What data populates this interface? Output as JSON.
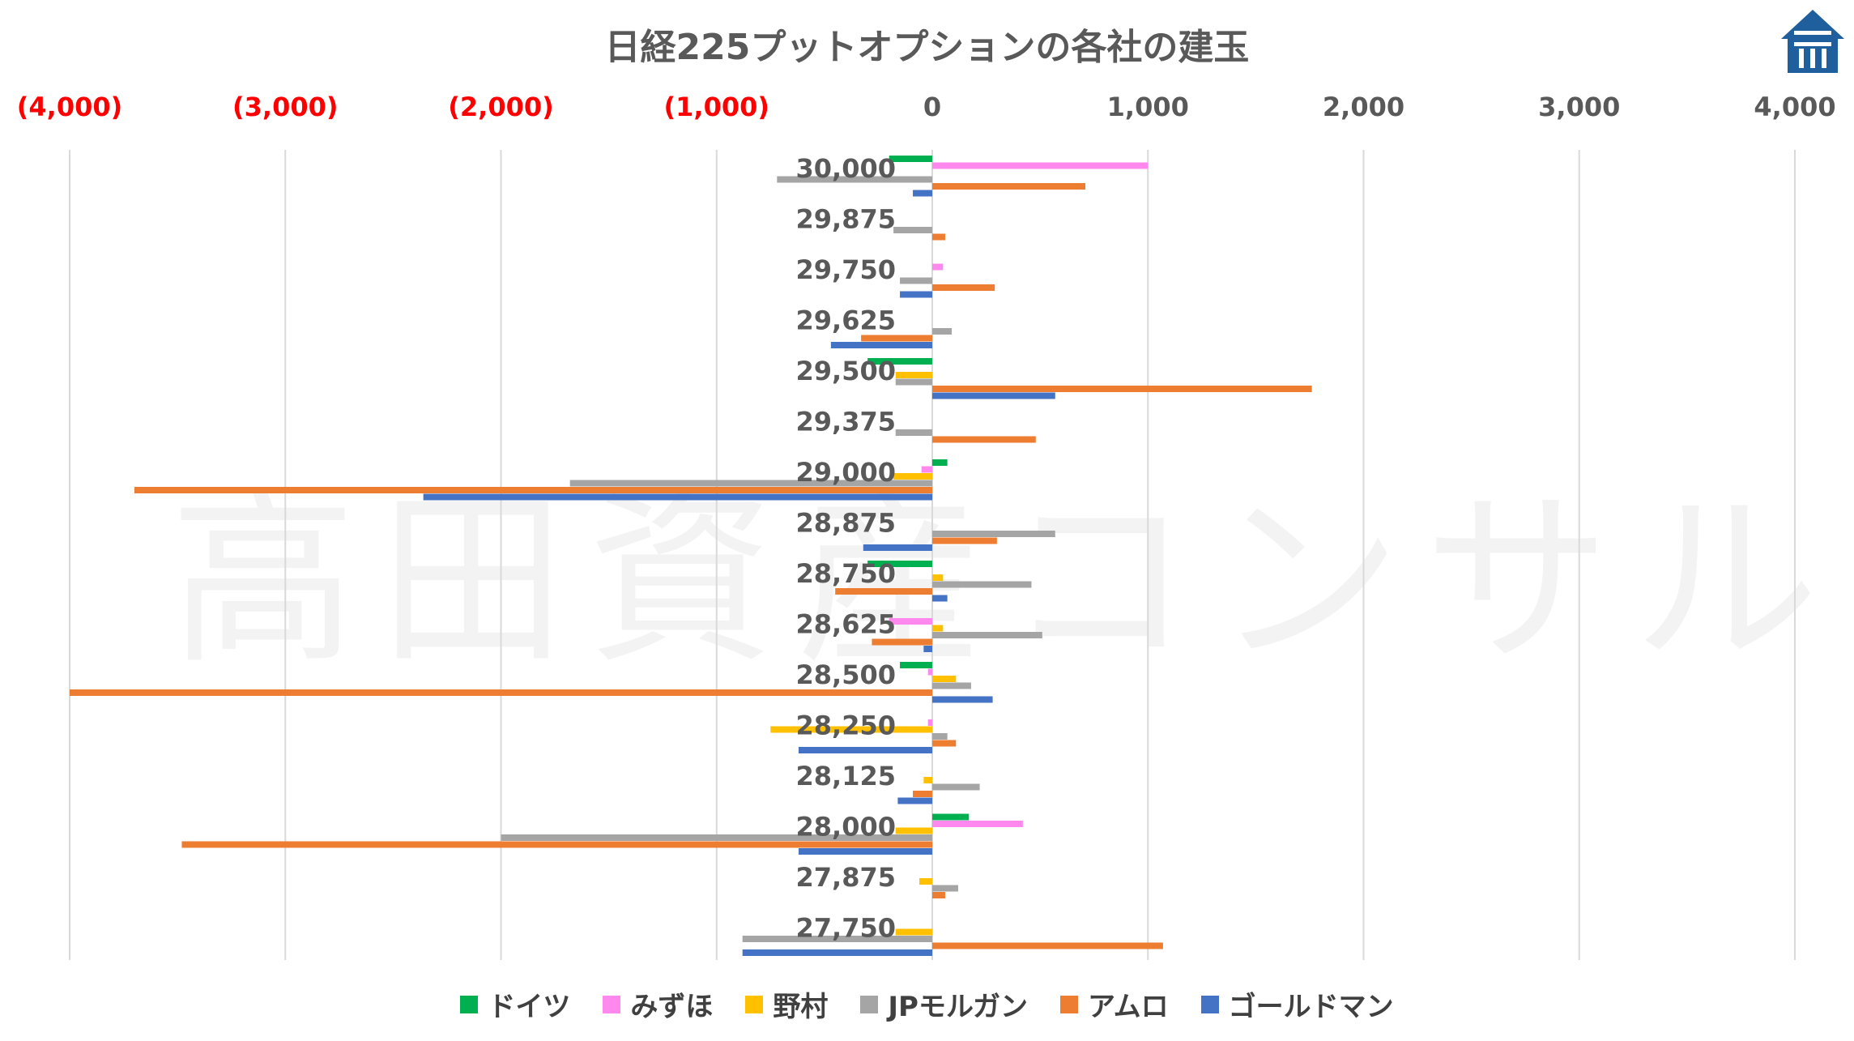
{
  "chart_data": {
    "type": "bar",
    "orientation": "horizontal",
    "title": "日経225プットオプションの各社の建玉",
    "xlim": [
      -4000,
      4000
    ],
    "x_ticks": [
      {
        "value": -4000,
        "label": "(4,000)",
        "color": "#ff0000"
      },
      {
        "value": -3000,
        "label": "(3,000)",
        "color": "#ff0000"
      },
      {
        "value": -2000,
        "label": "(2,000)",
        "color": "#ff0000"
      },
      {
        "value": -1000,
        "label": "(1,000)",
        "color": "#ff0000"
      },
      {
        "value": 0,
        "label": "0",
        "color": "#595959"
      },
      {
        "value": 1000,
        "label": "1,000",
        "color": "#595959"
      },
      {
        "value": 2000,
        "label": "2,000",
        "color": "#595959"
      },
      {
        "value": 3000,
        "label": "3,000",
        "color": "#595959"
      },
      {
        "value": 4000,
        "label": "4,000",
        "color": "#595959"
      }
    ],
    "grid": true,
    "legend_position": "bottom",
    "categories": [
      "30,000",
      "29,875",
      "29,750",
      "29,625",
      "29,500",
      "29,375",
      "29,000",
      "28,875",
      "28,750",
      "28,625",
      "28,500",
      "28,250",
      "28,125",
      "28,000",
      "27,875",
      "27,750"
    ],
    "series": [
      {
        "name": "ドイツ",
        "color": "#00b050",
        "values": [
          -200,
          0,
          0,
          0,
          -300,
          0,
          70,
          0,
          -300,
          0,
          -150,
          0,
          0,
          170,
          0,
          0
        ]
      },
      {
        "name": "みずほ",
        "color": "#ff88ee",
        "values": [
          1000,
          0,
          50,
          0,
          0,
          0,
          -50,
          0,
          0,
          -200,
          -20,
          -20,
          0,
          420,
          0,
          0
        ]
      },
      {
        "name": "野村",
        "color": "#ffc000",
        "values": [
          0,
          0,
          0,
          0,
          -170,
          0,
          -180,
          0,
          50,
          50,
          110,
          -750,
          -40,
          -170,
          -60,
          -170
        ]
      },
      {
        "name": "JPモルガン",
        "color": "#a5a5a5",
        "values": [
          -720,
          -180,
          -150,
          90,
          -170,
          -170,
          -1680,
          570,
          460,
          510,
          180,
          70,
          220,
          -2000,
          120,
          -880
        ]
      },
      {
        "name": "アムロ",
        "color": "#ed7d31",
        "values": [
          710,
          60,
          290,
          -330,
          1760,
          480,
          -3700,
          300,
          -450,
          -280,
          -4000,
          110,
          -90,
          -3480,
          60,
          1070
        ]
      },
      {
        "name": "ゴールドマン",
        "color": "#4472c4",
        "values": [
          -90,
          0,
          -150,
          -470,
          570,
          0,
          -2360,
          -320,
          70,
          -40,
          280,
          -620,
          -160,
          -620,
          0,
          -880
        ]
      }
    ]
  },
  "watermark": "高田資産コンサル",
  "logo_icon": "house-pillar-logo-icon"
}
